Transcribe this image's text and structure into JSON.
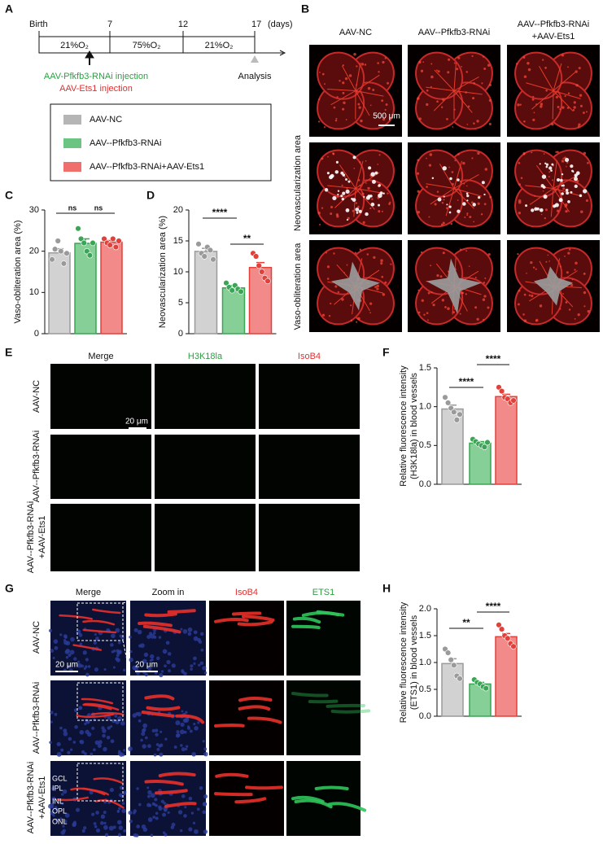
{
  "panel_a": {
    "label": "A",
    "timeline": [
      "Birth",
      "7",
      "12",
      "17"
    ],
    "unit": "(days)",
    "conditions": [
      "21%O₂",
      "75%O₂",
      "21%O₂"
    ],
    "injection": [
      "AAV-Pfkfb3-RNAi injection",
      "AAV-Ets1 injection"
    ],
    "analysis": "Analysis",
    "legend": [
      {
        "name": "AAV-NC",
        "color": "#b5b5b5"
      },
      {
        "name": "AAV--Pfkfb3-RNAi",
        "color": "#6cc483"
      },
      {
        "name": "AAV--Pfkfb3-RNAi+AAV-Ets1",
        "color": "#ef6f6c"
      }
    ]
  },
  "panel_b": {
    "label": "B",
    "columns": [
      [
        "AAV-NC"
      ],
      [
        "AAV--Pfkfb3-RNAi"
      ],
      [
        "AAV--Pfkfb3-RNAi",
        "+AAV-Ets1"
      ]
    ],
    "rows": [
      "Neovascularization area",
      "Vaso-obliteration area"
    ],
    "scale_bar": "500 μm"
  },
  "chart_data": [
    {
      "type": "bar",
      "label": "C",
      "ylabel": [
        "Vaso-obliteration area (%)"
      ],
      "ylim": [
        0,
        30
      ],
      "yticks": [
        0,
        10,
        20,
        30
      ],
      "values": [
        19.6,
        21.9,
        22.2
      ],
      "errors": [
        1.0,
        1.1,
        0.4
      ],
      "points": [
        [
          18,
          20.5,
          22.5,
          20,
          17,
          19.5
        ],
        [
          25.5,
          23,
          22,
          20,
          19,
          22
        ],
        [
          23,
          22,
          21.5,
          23,
          21,
          22.5
        ]
      ],
      "colors": [
        "#d2d2d2",
        "#86cf96",
        "#f28a8a"
      ],
      "edge_colors": [
        "#9a9a9a",
        "#3aa655",
        "#e2413a"
      ],
      "annotations": [
        "ns",
        "ns"
      ]
    },
    {
      "type": "bar",
      "label": "D",
      "ylabel": [
        "Neovascularization area (%)"
      ],
      "ylim": [
        0,
        20
      ],
      "yticks": [
        0,
        5,
        10,
        15,
        20
      ],
      "values": [
        13.3,
        7.4,
        10.7
      ],
      "errors": [
        0.5,
        0.4,
        0.8
      ],
      "points": [
        [
          14.5,
          13,
          12.5,
          14,
          13.5,
          12
        ],
        [
          8.2,
          7.5,
          7,
          7.8,
          7.2,
          6.8
        ],
        [
          13,
          12.5,
          11,
          10,
          9,
          8.5
        ]
      ],
      "colors": [
        "#d2d2d2",
        "#86cf96",
        "#f28a8a"
      ],
      "edge_colors": [
        "#9a9a9a",
        "#3aa655",
        "#e2413a"
      ],
      "annotations": [
        "****",
        "**"
      ]
    },
    {
      "type": "bar",
      "label": "F",
      "ylabel": [
        "Relative fluorescence intensity",
        "(H3K18la) in blood vessels"
      ],
      "ylim": [
        0,
        1.5
      ],
      "yticks": [
        {
          "value": 0,
          "label": "0.0"
        },
        {
          "value": 0.5,
          "label": "0.5"
        },
        {
          "value": 1,
          "label": "1.0"
        },
        {
          "value": 1.5,
          "label": "1.5"
        }
      ],
      "values": [
        0.97,
        0.53,
        1.13
      ],
      "errors": [
        0.05,
        0.02,
        0.03
      ],
      "points": [
        [
          1.12,
          1.05,
          0.98,
          0.93,
          0.83,
          0.9
        ],
        [
          0.58,
          0.55,
          0.52,
          0.5,
          0.48,
          0.54
        ],
        [
          1.25,
          1.2,
          1.12,
          1.1,
          1.05,
          1.08
        ]
      ],
      "colors": [
        "#d2d2d2",
        "#86cf96",
        "#f28a8a"
      ],
      "edge_colors": [
        "#9a9a9a",
        "#3aa655",
        "#e2413a"
      ],
      "annotations": [
        "****",
        "****"
      ]
    },
    {
      "type": "bar",
      "label": "H",
      "ylabel": [
        "Relative fluorescence intensity",
        "(ETS1) in blood vessels"
      ],
      "ylim": [
        0,
        2
      ],
      "yticks": [
        {
          "value": 0,
          "label": "0.0"
        },
        {
          "value": 0.5,
          "label": "0.5"
        },
        {
          "value": 1,
          "label": "1.0"
        },
        {
          "value": 1.5,
          "label": "1.5"
        },
        {
          "value": 2,
          "label": "2.0"
        }
      ],
      "values": [
        0.98,
        0.6,
        1.48
      ],
      "errors": [
        0.09,
        0.03,
        0.06
      ],
      "points": [
        [
          1.25,
          1.18,
          1.05,
          0.95,
          0.75,
          0.7
        ],
        [
          0.68,
          0.63,
          0.6,
          0.55,
          0.52
        ],
        [
          1.7,
          1.62,
          1.5,
          1.45,
          1.35,
          1.3
        ]
      ],
      "colors": [
        "#d2d2d2",
        "#86cf96",
        "#f28a8a"
      ],
      "edge_colors": [
        "#9a9a9a",
        "#3aa655",
        "#e2413a"
      ],
      "annotations": [
        "**",
        "****"
      ]
    }
  ],
  "panel_e": {
    "label": "E",
    "columns": [
      "Merge",
      "H3K18la",
      "IsoB4"
    ],
    "rows": [
      [
        "AAV-NC"
      ],
      [
        "AAV--Pfkfb3-RNAi"
      ],
      [
        "AAV--Pfkfb3-RNAi",
        "+AAV-Ets1"
      ]
    ],
    "scale_bar": "20 μm"
  },
  "panel_g": {
    "label": "G",
    "columns": [
      "Merge",
      "Zoom in",
      "IsoB4",
      "ETS1"
    ],
    "rows": [
      [
        "AAV-NC"
      ],
      [
        "AAV--Pfkfb3-RNAi"
      ],
      [
        "AAV--Pfkfb3-RNAi",
        "+AAV-Ets1"
      ]
    ],
    "scale_bars": [
      "20 μm",
      "20 μm"
    ],
    "layers": [
      "GCL",
      "IPL",
      "INL",
      "OPL",
      "ONL"
    ]
  }
}
